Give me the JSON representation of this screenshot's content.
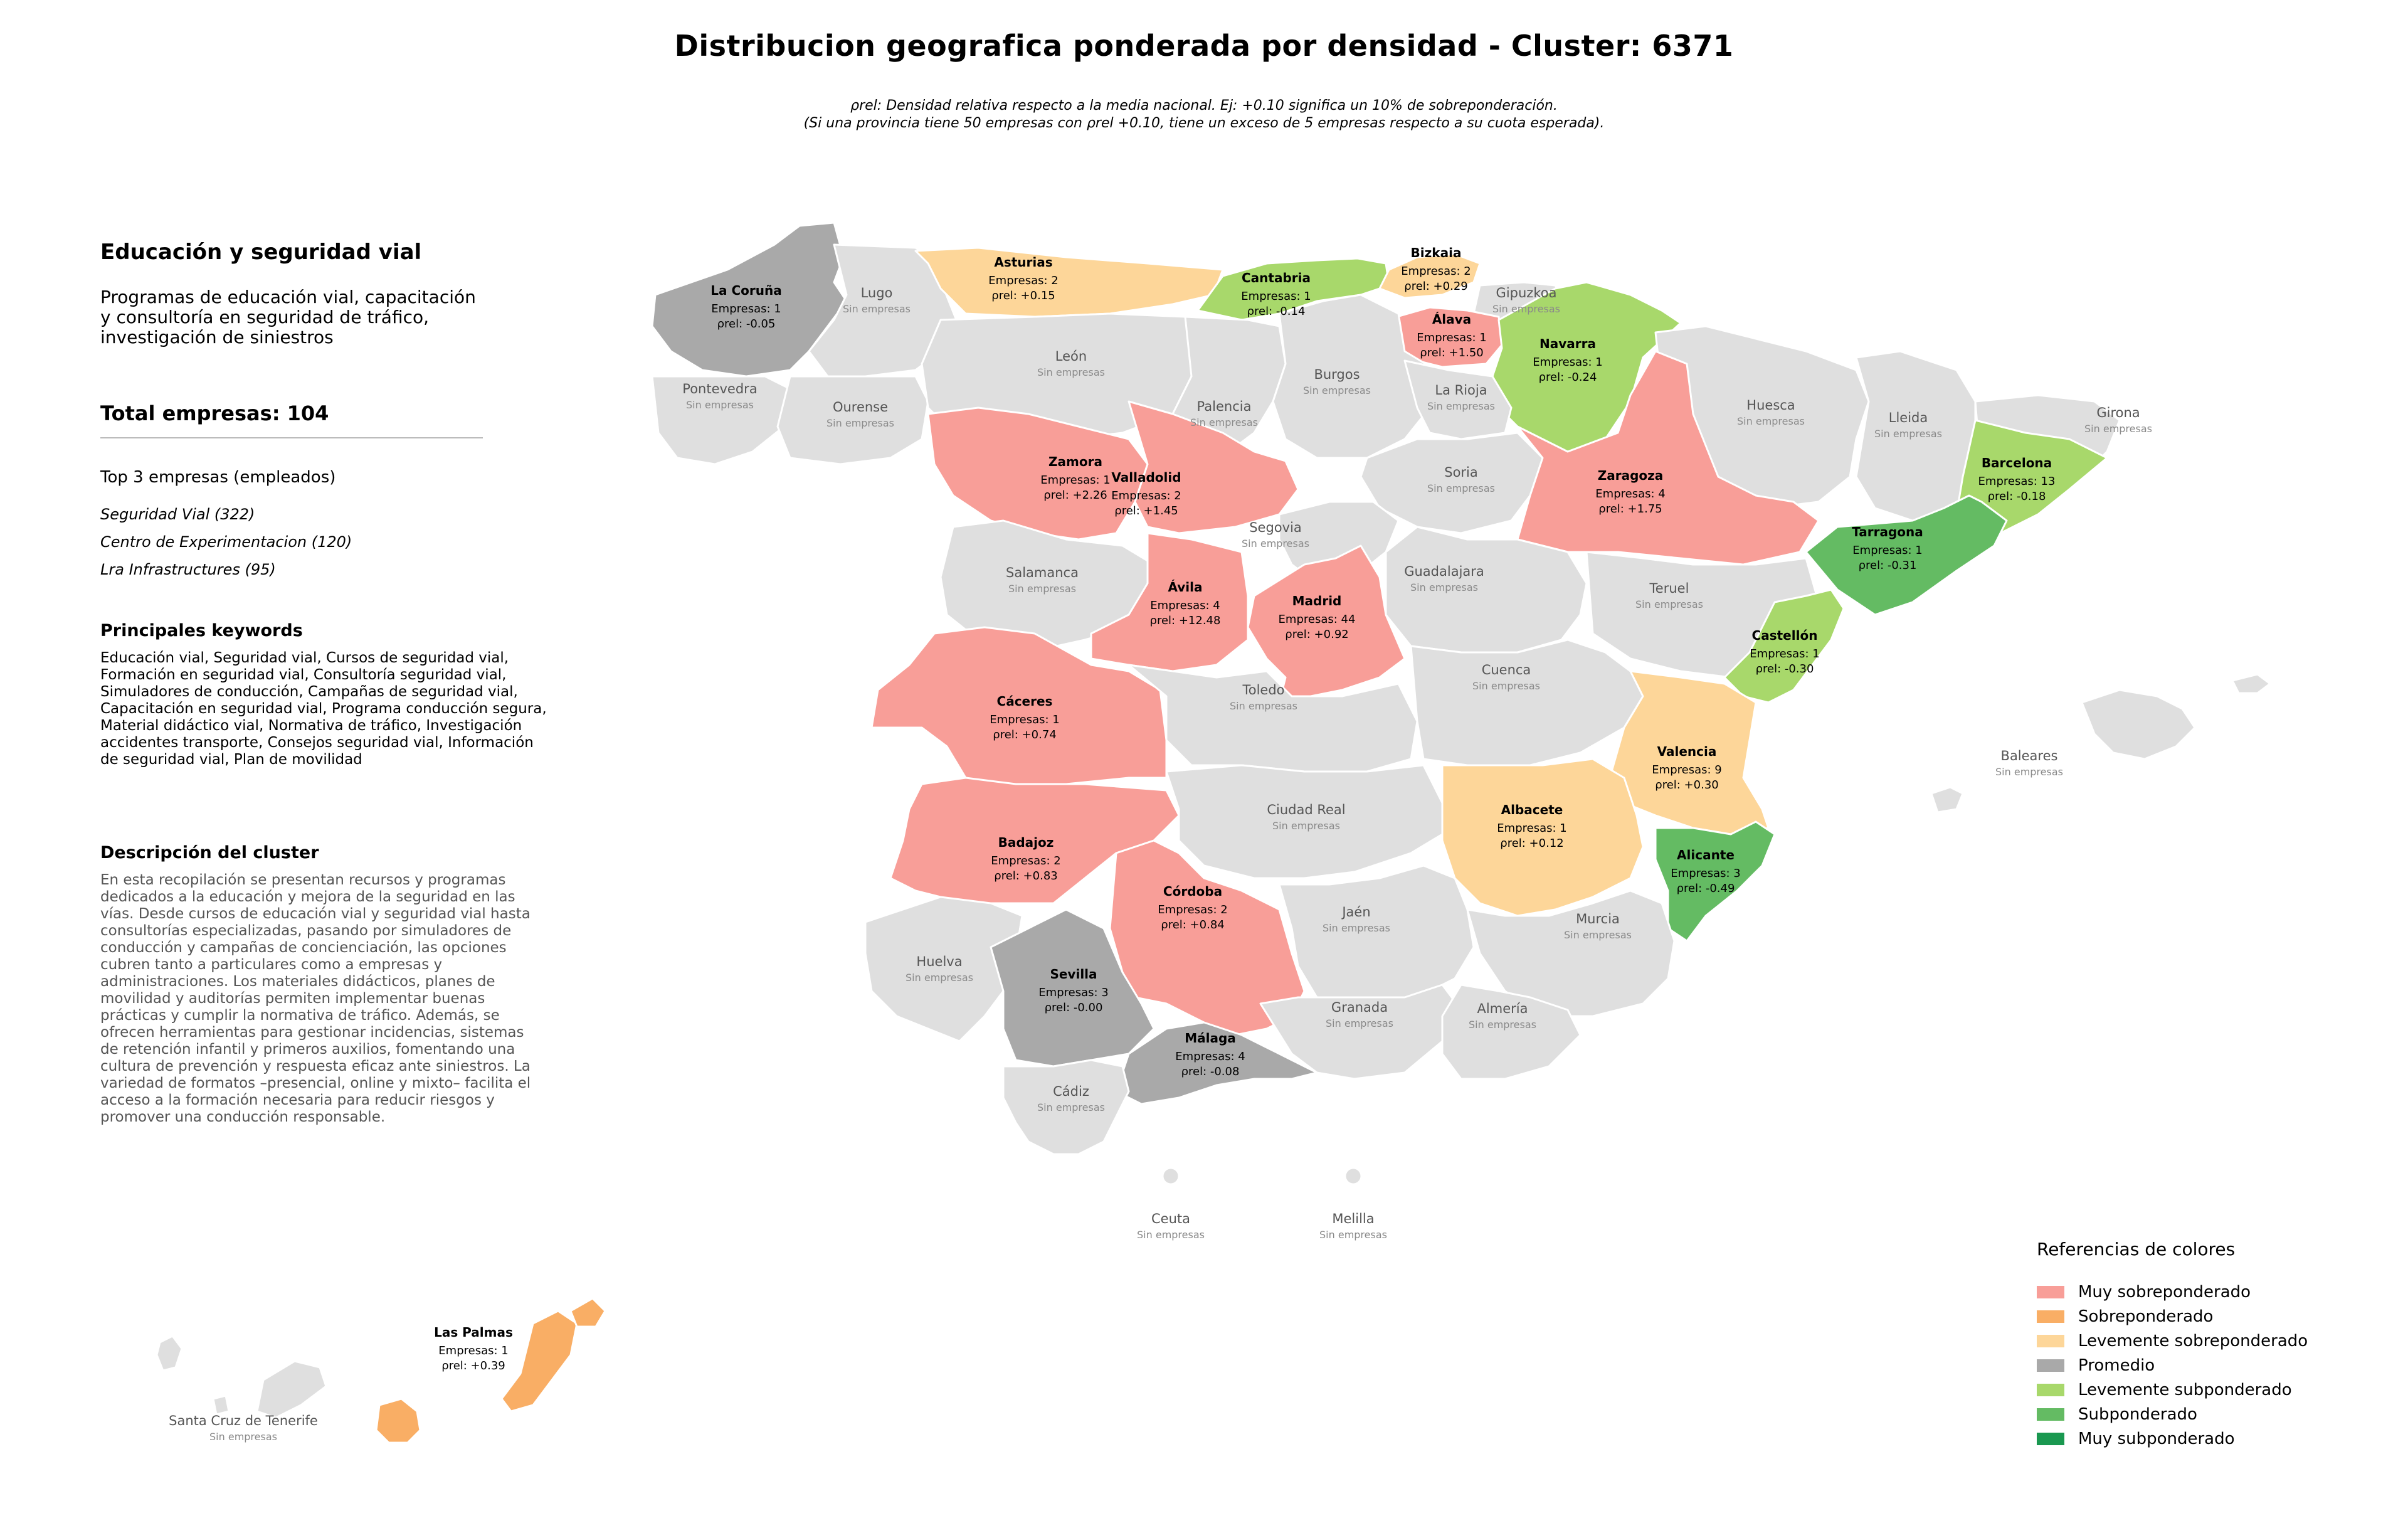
{
  "title": "Distribucion geografica ponderada por densidad - Cluster: 6371",
  "subtitle_line1": "ρrel: Densidad relativa respecto a la media nacional. Ej: +0.10 significa un 10% de sobreponderación.",
  "subtitle_line2": "(Si una provincia tiene 50 empresas con ρrel +0.10, tiene un exceso de 5 empresas respecto a su cuota esperada).",
  "panel": {
    "cluster_title": "Educación y seguridad vial",
    "cluster_description": "Programas de educación vial, capacitación y consultoría en seguridad de tráfico, investigación de siniestros",
    "total": "Total empresas: 104",
    "top3_heading": "Top 3 empresas (empleados)",
    "top3": [
      "Seguridad Vial (322)",
      "Centro de Experimentacion (120)",
      "Lra Infrastructures (95)"
    ],
    "keywords_heading": "Principales keywords",
    "keywords": "Educación vial, Seguridad vial, Cursos de seguridad vial, Formación en seguridad vial, Consultoría seguridad vial, Simuladores de conducción, Campañas de seguridad vial, Capacitación en seguridad vial, Programa conducción segura, Material didáctico vial, Normativa de tráfico, Investigación accidentes transporte, Consejos seguridad vial, Información de seguridad vial, Plan de movilidad",
    "description_heading": "Descripción del cluster",
    "description": "En esta recopilación se presentan recursos y programas dedicados a la educación y mejora de la seguridad en las vías. Desde cursos de educación vial y seguridad vial hasta consultorías especializadas, pasando por simuladores de conducción y campañas de concienciación, las opciones cubren tanto a particulares como a empresas y administraciones. Los materiales didácticos, planes de movilidad y auditorías permiten implementar buenas prácticas y cumplir la normativa de tráfico. Además, se ofrecen herramientas para gestionar incidencias, sistemas de retención infantil y primeros auxilios, fomentando una cultura de prevención y respuesta eficaz ante siniestros. La variedad de formatos –presencial, online y mixto– facilita el acceso a la formación necesaria para reducir riesgos y promover una conducción responsable."
  },
  "legend": {
    "title": "Referencias de colores",
    "items": [
      {
        "label": "Muy sobreponderado",
        "color": "#f89e98"
      },
      {
        "label": "Sobreponderado",
        "color": "#f9ae65"
      },
      {
        "label": "Levemente sobreponderado",
        "color": "#fdd699"
      },
      {
        "label": "Promedio",
        "color": "#a9a9a9"
      },
      {
        "label": "Levemente subponderado",
        "color": "#a8d86b"
      },
      {
        "label": "Subponderado",
        "color": "#64bb63"
      },
      {
        "label": "Muy subponderado",
        "color": "#1a9850"
      }
    ]
  },
  "colors": {
    "muy_sobre": "#f89e98",
    "sobre": "#f9ae65",
    "leve_sobre": "#fdd699",
    "promedio": "#a9a9a9",
    "leve_sub": "#a8d86b",
    "sub": "#64bb63",
    "muy_sub": "#1a9850",
    "sin": "#dfdfdf"
  },
  "map": {
    "empresas_prefix": "Empresas: ",
    "rho_prefix": "ρrel: ",
    "no_companies": "Sin empresas",
    "provinces": [
      {
        "name": "La Coruña",
        "empresas": 1,
        "rho": "-0.05",
        "cat": "promedio"
      },
      {
        "name": "Lugo",
        "cat": "sin"
      },
      {
        "name": "Asturias",
        "empresas": 2,
        "rho": "+0.15",
        "cat": "leve_sobre"
      },
      {
        "name": "Cantabria",
        "empresas": 1,
        "rho": "-0.14",
        "cat": "leve_sub"
      },
      {
        "name": "Bizkaia",
        "empresas": 2,
        "rho": "+0.29",
        "cat": "leve_sobre"
      },
      {
        "name": "Gipuzkoa",
        "cat": "sin"
      },
      {
        "name": "Álava",
        "empresas": 1,
        "rho": "+1.50",
        "cat": "muy_sobre"
      },
      {
        "name": "Navarra",
        "empresas": 1,
        "rho": "-0.24",
        "cat": "leve_sub"
      },
      {
        "name": "Pontevedra",
        "cat": "sin"
      },
      {
        "name": "Ourense",
        "cat": "sin"
      },
      {
        "name": "León",
        "cat": "sin"
      },
      {
        "name": "Palencia",
        "cat": "sin"
      },
      {
        "name": "Burgos",
        "cat": "sin"
      },
      {
        "name": "La Rioja",
        "cat": "sin"
      },
      {
        "name": "Huesca",
        "cat": "sin"
      },
      {
        "name": "Lleida",
        "cat": "sin"
      },
      {
        "name": "Girona",
        "cat": "sin"
      },
      {
        "name": "Barcelona",
        "empresas": 13,
        "rho": "-0.18",
        "cat": "leve_sub"
      },
      {
        "name": "Zamora",
        "empresas": 1,
        "rho": "+2.26",
        "cat": "muy_sobre"
      },
      {
        "name": "Valladolid",
        "empresas": 2,
        "rho": "+1.45",
        "cat": "muy_sobre"
      },
      {
        "name": "Soria",
        "cat": "sin"
      },
      {
        "name": "Zaragoza",
        "empresas": 4,
        "rho": "+1.75",
        "cat": "muy_sobre"
      },
      {
        "name": "Tarragona",
        "empresas": 1,
        "rho": "-0.31",
        "cat": "sub"
      },
      {
        "name": "Segovia",
        "cat": "sin"
      },
      {
        "name": "Salamanca",
        "cat": "sin"
      },
      {
        "name": "Ávila",
        "empresas": 4,
        "rho": "+12.48",
        "cat": "muy_sobre"
      },
      {
        "name": "Madrid",
        "empresas": 44,
        "rho": "+0.92",
        "cat": "muy_sobre"
      },
      {
        "name": "Guadalajara",
        "cat": "sin"
      },
      {
        "name": "Teruel",
        "cat": "sin"
      },
      {
        "name": "Castellón",
        "empresas": 1,
        "rho": "-0.30",
        "cat": "leve_sub"
      },
      {
        "name": "Cáceres",
        "empresas": 1,
        "rho": "+0.74",
        "cat": "muy_sobre"
      },
      {
        "name": "Toledo",
        "cat": "sin"
      },
      {
        "name": "Cuenca",
        "cat": "sin"
      },
      {
        "name": "Valencia",
        "empresas": 9,
        "rho": "+0.30",
        "cat": "leve_sobre"
      },
      {
        "name": "Badajoz",
        "empresas": 2,
        "rho": "+0.83",
        "cat": "muy_sobre"
      },
      {
        "name": "Ciudad Real",
        "cat": "sin"
      },
      {
        "name": "Albacete",
        "empresas": 1,
        "rho": "+0.12",
        "cat": "leve_sobre"
      },
      {
        "name": "Alicante",
        "empresas": 3,
        "rho": "-0.49",
        "cat": "sub"
      },
      {
        "name": "Córdoba",
        "empresas": 2,
        "rho": "+0.84",
        "cat": "muy_sobre"
      },
      {
        "name": "Jaén",
        "cat": "sin"
      },
      {
        "name": "Murcia",
        "cat": "sin"
      },
      {
        "name": "Huelva",
        "cat": "sin"
      },
      {
        "name": "Sevilla",
        "empresas": 3,
        "rho": "-0.00",
        "cat": "promedio"
      },
      {
        "name": "Granada",
        "cat": "sin"
      },
      {
        "name": "Almería",
        "cat": "sin"
      },
      {
        "name": "Málaga",
        "empresas": 4,
        "rho": "-0.08",
        "cat": "promedio"
      },
      {
        "name": "Cádiz",
        "cat": "sin"
      },
      {
        "name": "Baleares",
        "cat": "sin"
      },
      {
        "name": "Ceuta",
        "cat": "sin"
      },
      {
        "name": "Melilla",
        "cat": "sin"
      },
      {
        "name": "Las Palmas",
        "empresas": 1,
        "rho": "+0.39",
        "cat": "sobre"
      },
      {
        "name": "Santa Cruz de Tenerife",
        "cat": "sin"
      }
    ]
  }
}
